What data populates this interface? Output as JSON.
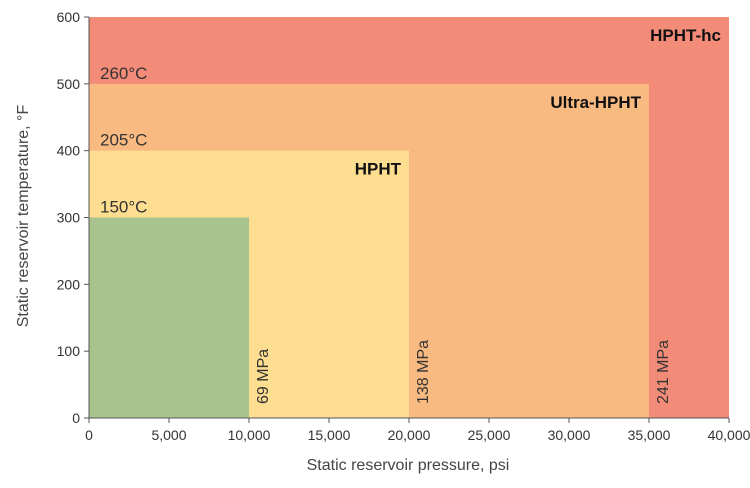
{
  "chart_data": {
    "type": "area",
    "title": "",
    "xlabel": "Static reservoir pressure, psi",
    "ylabel": "Static reservoir temperature, °F",
    "xlim": [
      0,
      40000
    ],
    "ylim": [
      0,
      600
    ],
    "x_ticks": [
      "0",
      "5,000",
      "10,000",
      "15,000",
      "20,000",
      "25,000",
      "30,000",
      "35,000",
      "40,000"
    ],
    "y_ticks": [
      "0",
      "100",
      "200",
      "300",
      "400",
      "500",
      "600"
    ],
    "grid": false,
    "regions": [
      {
        "name": "HPHT-hc",
        "x_max": 40000,
        "y_max": 600,
        "color": "#f28b78",
        "show_label": true
      },
      {
        "name": "Ultra-HPHT",
        "x_max": 35000,
        "y_max": 500,
        "color": "#f9ba82",
        "show_label": true
      },
      {
        "name": "HPHT",
        "x_max": 20000,
        "y_max": 400,
        "color": "#fddd8f",
        "show_label": true
      },
      {
        "name": "",
        "x_max": 10000,
        "y_max": 300,
        "color": "#a9c38f",
        "show_label": false
      }
    ],
    "temperature_annotations": [
      {
        "text": "260°C",
        "y": 500
      },
      {
        "text": "205°C",
        "y": 400
      },
      {
        "text": "150°C",
        "y": 300
      }
    ],
    "pressure_annotations": [
      {
        "text": "69 MPa",
        "x": 10000
      },
      {
        "text": "138 MPa",
        "x": 20000
      },
      {
        "text": "241 MPa",
        "x": 35000
      }
    ]
  }
}
